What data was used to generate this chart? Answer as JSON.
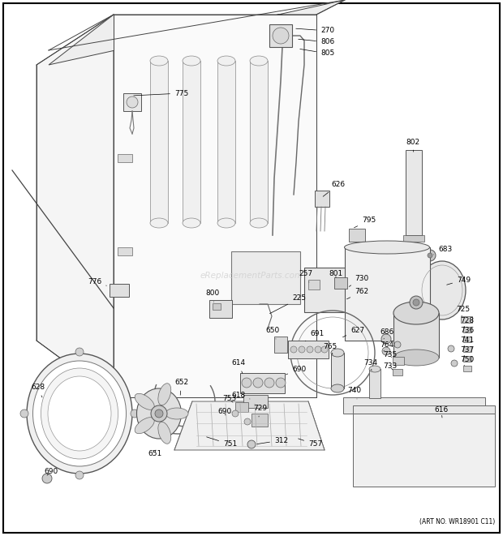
{
  "bg_color": "#ffffff",
  "line_color": "#333333",
  "art_no": "(ART NO. WR18901 C11)",
  "watermark": "eReplacementParts.com",
  "lc": "#444444",
  "lw": 0.7,
  "fs": 6.5
}
